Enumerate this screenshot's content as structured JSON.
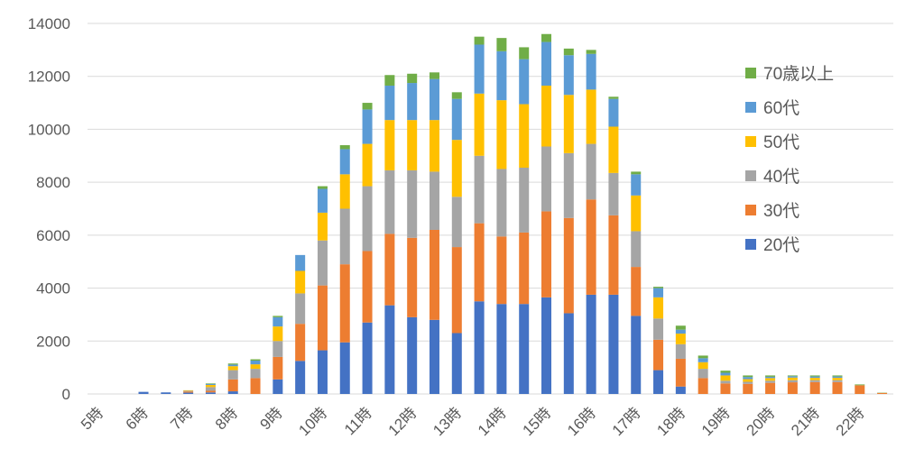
{
  "chart_data": {
    "type": "bar",
    "stacked": true,
    "title": "",
    "xlabel": "",
    "ylabel": "",
    "ylim": [
      0,
      14000
    ],
    "y_ticks": [
      "0",
      "2000",
      "4000",
      "6000",
      "8000",
      "10000",
      "12000",
      "14000"
    ],
    "grid": true,
    "legend_position": "right",
    "x_tick_labels": [
      "5時",
      "6時",
      "7時",
      "8時",
      "9時",
      "10時",
      "11時",
      "12時",
      "13時",
      "14時",
      "15時",
      "16時",
      "17時",
      "18時",
      "19時",
      "20時",
      "21時",
      "22時"
    ],
    "categories": [
      "5:00",
      "5:30",
      "6:00",
      "6:30",
      "7:00",
      "7:30",
      "8:00",
      "8:30",
      "9:00",
      "9:30",
      "10:00",
      "10:30",
      "11:00",
      "11:30",
      "12:00",
      "12:30",
      "13:00",
      "13:30",
      "14:00",
      "14:30",
      "15:00",
      "15:30",
      "16:00",
      "16:30",
      "17:00",
      "17:30",
      "18:00",
      "18:30",
      "19:00",
      "19:30",
      "20:00",
      "20:30",
      "21:00",
      "21:30",
      "22:00",
      "22:30"
    ],
    "series": [
      {
        "name": "20代",
        "color": "#4472c4",
        "values": [
          0,
          0,
          80,
          60,
          50,
          60,
          100,
          0,
          550,
          1250,
          1650,
          1950,
          2700,
          3350,
          2900,
          2800,
          2300,
          3500,
          3400,
          3400,
          3650,
          3050,
          3750,
          3750,
          2950,
          900,
          280,
          0,
          0,
          0,
          0,
          0,
          0,
          0,
          0,
          0
        ]
      },
      {
        "name": "30代",
        "color": "#ed7d31",
        "values": [
          0,
          0,
          0,
          0,
          40,
          60,
          450,
          600,
          850,
          1400,
          2450,
          2950,
          2700,
          2700,
          3000,
          3400,
          3250,
          2950,
          2550,
          2700,
          3250,
          3600,
          3600,
          3000,
          1850,
          1150,
          1050,
          600,
          400,
          380,
          420,
          440,
          450,
          450,
          330,
          40
        ]
      },
      {
        "name": "40代",
        "color": "#a5a5a5",
        "values": [
          0,
          0,
          0,
          0,
          30,
          140,
          350,
          350,
          600,
          1150,
          1700,
          2100,
          2450,
          2400,
          2550,
          2200,
          1900,
          2550,
          2550,
          2450,
          2450,
          2450,
          2100,
          1600,
          1350,
          800,
          550,
          350,
          100,
          80,
          80,
          80,
          70,
          70,
          0,
          0
        ]
      },
      {
        "name": "50代",
        "color": "#ffc000",
        "values": [
          0,
          0,
          0,
          0,
          20,
          80,
          150,
          170,
          550,
          850,
          1050,
          1300,
          1600,
          1900,
          1900,
          1950,
          2150,
          2350,
          2600,
          2400,
          2300,
          2200,
          2050,
          1750,
          1350,
          800,
          400,
          250,
          200,
          100,
          100,
          100,
          90,
          90,
          0,
          0
        ]
      },
      {
        "name": "60代",
        "color": "#5b9bd5",
        "values": [
          0,
          0,
          0,
          0,
          0,
          40,
          60,
          140,
          350,
          600,
          900,
          950,
          1300,
          1300,
          1400,
          1550,
          1550,
          1850,
          1850,
          1700,
          1650,
          1500,
          1350,
          1050,
          800,
          350,
          150,
          150,
          100,
          80,
          50,
          50,
          50,
          50,
          0,
          0
        ]
      },
      {
        "name": "70歳以上",
        "color": "#70ad47",
        "values": [
          0,
          0,
          0,
          0,
          0,
          20,
          40,
          50,
          50,
          0,
          100,
          150,
          250,
          400,
          350,
          250,
          250,
          300,
          500,
          450,
          300,
          250,
          150,
          80,
          100,
          50,
          150,
          100,
          80,
          60,
          50,
          30,
          40,
          40,
          30,
          10
        ]
      }
    ]
  }
}
